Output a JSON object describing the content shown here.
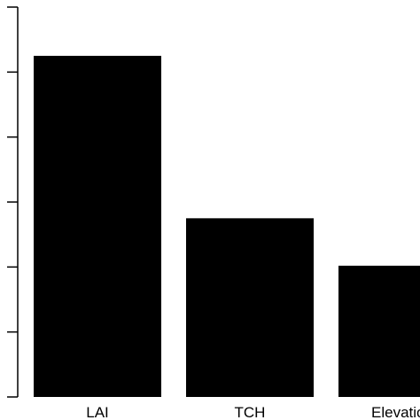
{
  "chart_data": {
    "type": "bar",
    "categories": [
      "LAI",
      "TCH",
      "Elevation"
    ],
    "values": [
      0.525,
      0.275,
      0.202
    ],
    "title": "",
    "xlabel": "",
    "ylabel": "",
    "ylim": [
      0,
      0.6
    ],
    "yticks": [
      0,
      0.1,
      0.2,
      0.3,
      0.4,
      0.5,
      0.6
    ],
    "bar_color": "#000000",
    "grid": false,
    "legend": "none"
  }
}
